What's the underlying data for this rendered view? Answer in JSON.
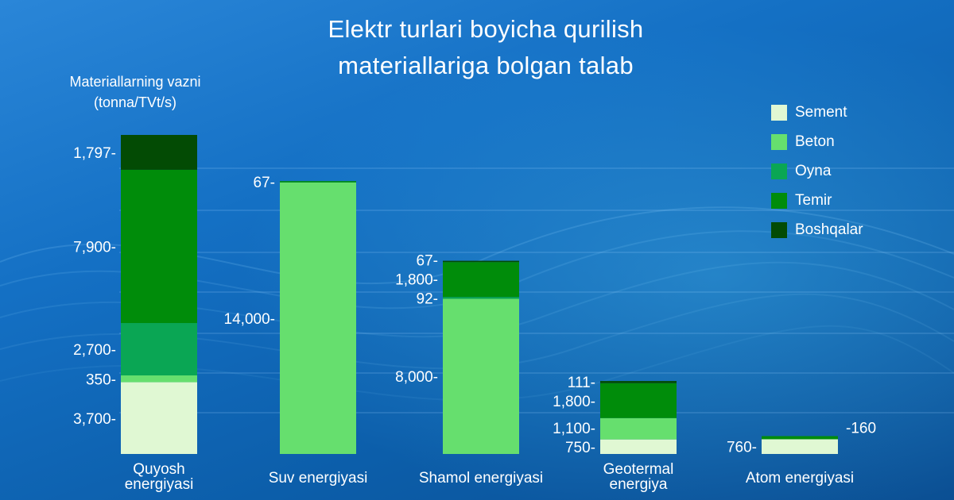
{
  "title_line1": "Elektr turlari boyicha qurilish",
  "title_line2": "materiallariga bolgan talab",
  "ylabel_line1": "Materiallarning vazni",
  "ylabel_line2": "(tonna/TVt/s)",
  "legend": [
    {
      "name": "Sement",
      "color": "#e0f8d3"
    },
    {
      "name": "Beton",
      "color": "#66df6e"
    },
    {
      "name": "Oyna",
      "color": "#0aa654"
    },
    {
      "name": "Temir",
      "color": "#008c0a"
    },
    {
      "name": "Boshqalar",
      "color": "#034b04"
    }
  ],
  "chart_data": {
    "type": "bar",
    "stacked": true,
    "categories": [
      [
        "Quyosh",
        "energiyasi"
      ],
      [
        "Suv energiyasi"
      ],
      [
        "Shamol energiyasi"
      ],
      [
        "Geotermal",
        "energiya"
      ],
      [
        "Atom energiyasi"
      ]
    ],
    "series": [
      {
        "name": "Sement",
        "color": "#e0f8d3",
        "values": [
          3700,
          0,
          0,
          750,
          760
        ]
      },
      {
        "name": "Beton",
        "color": "#66df6e",
        "values": [
          350,
          14000,
          8000,
          1100,
          0
        ]
      },
      {
        "name": "Oyna",
        "color": "#0aa654",
        "values": [
          2700,
          0,
          92,
          0,
          0
        ]
      },
      {
        "name": "Temir",
        "color": "#008c0a",
        "values": [
          7900,
          67,
          1800,
          1800,
          160
        ]
      },
      {
        "name": "Boshqalar",
        "color": "#034b04",
        "values": [
          1797,
          0,
          67,
          111,
          0
        ]
      }
    ],
    "segment_labels": [
      [
        {
          "text": "3,700-",
          "series": "Sement"
        },
        {
          "text": "350-",
          "series": "Beton"
        },
        {
          "text": "2,700-",
          "series": "Oyna"
        },
        {
          "text": "7,900-",
          "series": "Temir"
        },
        {
          "text": "1,797-",
          "series": "Boshqalar"
        }
      ],
      [
        {
          "text": "14,000-",
          "series": "Beton"
        },
        {
          "text": "67-",
          "series": "Temir"
        }
      ],
      [
        {
          "text": "8,000-",
          "series": "Beton"
        },
        {
          "text": "92-",
          "series": "Oyna"
        },
        {
          "text": "1,800-",
          "series": "Temir"
        },
        {
          "text": "67-",
          "series": "Boshqalar"
        }
      ],
      [
        {
          "text": "750-",
          "series": "Sement"
        },
        {
          "text": "1,100-",
          "series": "Beton"
        },
        {
          "text": "1,800-",
          "series": "Temir"
        },
        {
          "text": "111-",
          "series": "Boshqalar"
        }
      ],
      [
        {
          "text": "760-",
          "series": "Sement"
        },
        {
          "text": "-160",
          "series": "Temir"
        }
      ]
    ]
  }
}
